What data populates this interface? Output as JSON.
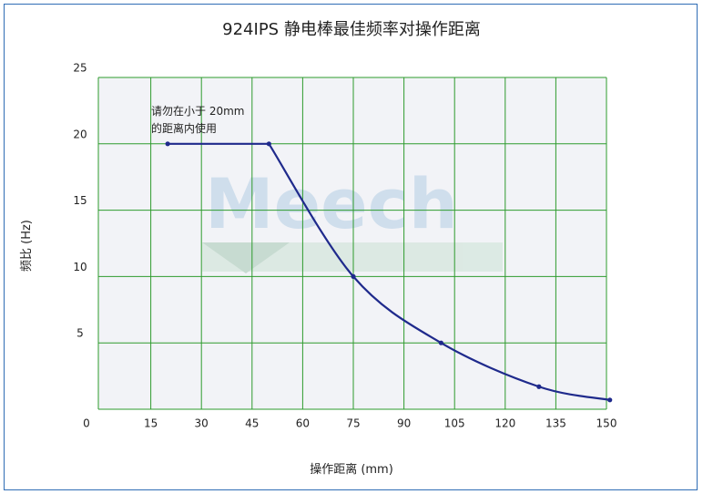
{
  "chart_data": {
    "type": "line",
    "title": "924IPS 静电棒最佳频率对操作距离",
    "xlabel": "操作距离 (mm)",
    "ylabel": "频比 (Hz)",
    "x_ticks": [
      "0",
      "15",
      "30",
      "45",
      "60",
      "75",
      "90",
      "105",
      "120",
      "135",
      "150"
    ],
    "y_ticks": [
      "5",
      "10",
      "15",
      "20",
      "25"
    ],
    "xlim": [
      0,
      150
    ],
    "ylim": [
      0,
      25
    ],
    "grid": true,
    "series": [
      {
        "color": "#1f2a8c",
        "x": [
          20,
          50,
          75,
          101,
          130,
          151
        ],
        "y": [
          20,
          20,
          10,
          5,
          1.7,
          0.7
        ]
      }
    ],
    "annotation": [
      "请勿在小于 20mm",
      "的距离内使用"
    ],
    "watermark": "Meech",
    "colors": {
      "grid": "#2e9b2e",
      "line": "#1f2a8c",
      "plot_bg": "#f2f3f7",
      "border": "#2f6db5"
    }
  }
}
